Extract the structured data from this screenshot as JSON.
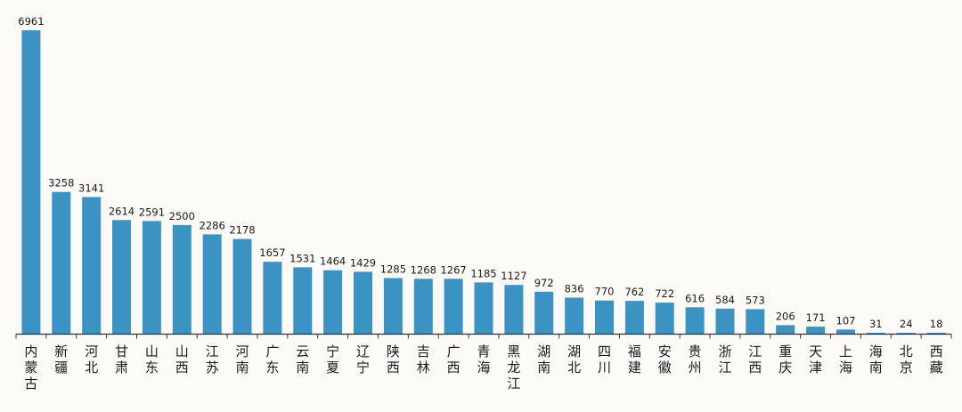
{
  "chart_data": {
    "type": "bar",
    "categories": [
      "内蒙古",
      "新疆",
      "河北",
      "甘肃",
      "山东",
      "山西",
      "江苏",
      "河南",
      "广东",
      "云南",
      "宁夏",
      "辽宁",
      "陕西",
      "吉林",
      "广西",
      "青海",
      "黑龙江",
      "湖南",
      "湖北",
      "四川",
      "福建",
      "安徽",
      "贵州",
      "浙江",
      "江西",
      "重庆",
      "天津",
      "上海",
      "海南",
      "北京",
      "西藏"
    ],
    "values": [
      6961,
      3258,
      3141,
      2614,
      2591,
      2500,
      2286,
      2178,
      1657,
      1531,
      1464,
      1429,
      1285,
      1268,
      1267,
      1185,
      1127,
      972,
      836,
      770,
      762,
      722,
      616,
      584,
      573,
      206,
      171,
      107,
      31,
      24,
      18
    ],
    "title": "",
    "xlabel": "",
    "ylabel": "",
    "ylim": [
      0,
      6961
    ],
    "grid": false,
    "legend": "none",
    "bar_color": "#3b93c3",
    "axis_color": "#333333"
  }
}
